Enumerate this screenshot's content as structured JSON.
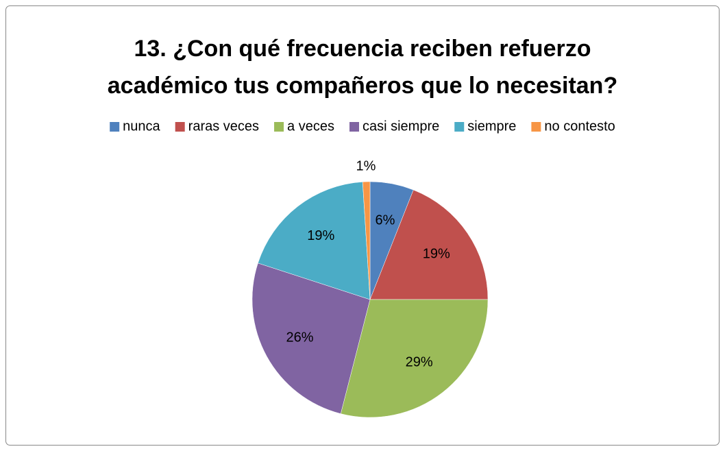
{
  "chart_data": {
    "type": "pie",
    "title": [
      "13. ¿Con qué frecuencia reciben refuerzo",
      "académico tus compañeros que lo necesitan?"
    ],
    "categories": [
      "nunca",
      "raras veces",
      "a veces",
      "casi siempre",
      "siempre",
      "no contesto"
    ],
    "values": [
      6,
      19,
      29,
      26,
      19,
      1
    ],
    "value_labels": [
      "6%",
      "19%",
      "29%",
      "26%",
      "19%",
      "1%"
    ],
    "colors": [
      "#4f81bd",
      "#c0504d",
      "#9bbb59",
      "#8064a2",
      "#4bacc6",
      "#f79646"
    ],
    "legend": "top"
  }
}
